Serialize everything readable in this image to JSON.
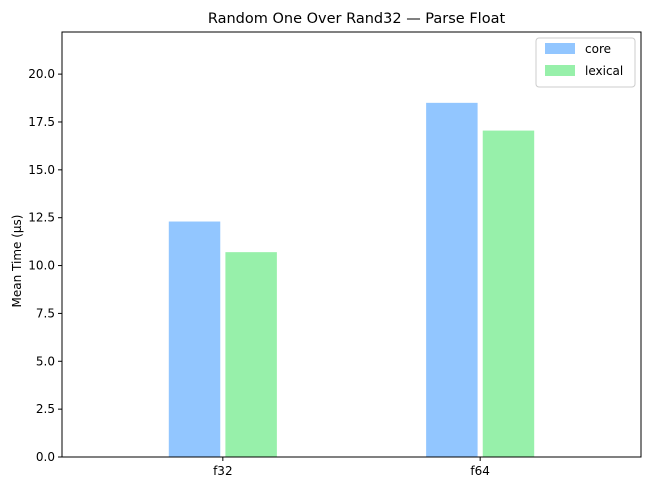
{
  "chart_data": {
    "type": "bar",
    "title": "Random One Over Rand32 — Parse Float",
    "xlabel": "",
    "ylabel": "Mean Time (µs)",
    "categories": [
      "f32",
      "f64"
    ],
    "series": [
      {
        "name": "core",
        "color": "#92c6ff",
        "values": [
          12.3,
          18.5
        ]
      },
      {
        "name": "lexical",
        "color": "#97f0aa",
        "values": [
          10.7,
          17.05
        ]
      }
    ],
    "ylim": [
      0,
      22.2
    ],
    "yticks": [
      "0.0",
      "2.5",
      "5.0",
      "7.5",
      "10.0",
      "12.5",
      "15.0",
      "17.5",
      "20.0"
    ],
    "legend_position": "top-right",
    "grid": false
  }
}
